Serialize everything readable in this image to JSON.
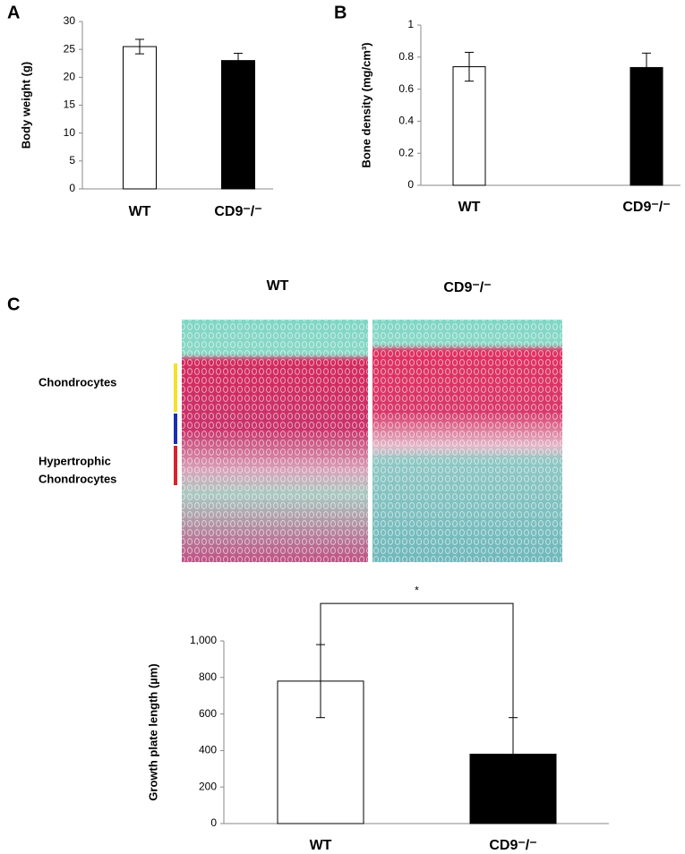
{
  "panels": {
    "a": "A",
    "b": "B",
    "c": "C"
  },
  "histology": {
    "captions": [
      "WT",
      "CD9⁻/⁻"
    ],
    "zones": [
      "Chondrocytes",
      "Hypertrophic",
      "Chondrocytes"
    ]
  },
  "chart_data": [
    {
      "type": "bar",
      "ylabel": "Body weight (g)",
      "categories": [
        "WT",
        "CD9⁻/⁻"
      ],
      "values": [
        25.5,
        23
      ],
      "errors": [
        1.3,
        1.3
      ],
      "colors": [
        "#ffffff",
        "#000000"
      ],
      "ylim": [
        0,
        30
      ],
      "yticks": [
        0,
        5,
        10,
        15,
        20,
        25,
        30
      ]
    },
    {
      "type": "bar",
      "ylabel": "Bone density (mg/cm³)",
      "categories": [
        "WT",
        "CD9⁻/⁻"
      ],
      "values": [
        0.74,
        0.735
      ],
      "errors": [
        0.09,
        0.09
      ],
      "colors": [
        "#ffffff",
        "#000000"
      ],
      "ylim": [
        0,
        1
      ],
      "yticks": [
        0,
        0.2,
        0.4,
        0.6,
        0.8,
        1
      ]
    },
    {
      "type": "bar",
      "ylabel": "Growth plate length (µm)",
      "categories": [
        "WT",
        "CD9⁻/⁻"
      ],
      "values": [
        780,
        380
      ],
      "errors": [
        200,
        200
      ],
      "colors": [
        "#ffffff",
        "#000000"
      ],
      "ylim": [
        0,
        1000
      ],
      "yticks": [
        0,
        200,
        400,
        600,
        800,
        {
          "value": 1000,
          "label": "1,000"
        }
      ],
      "significance": "*"
    }
  ]
}
